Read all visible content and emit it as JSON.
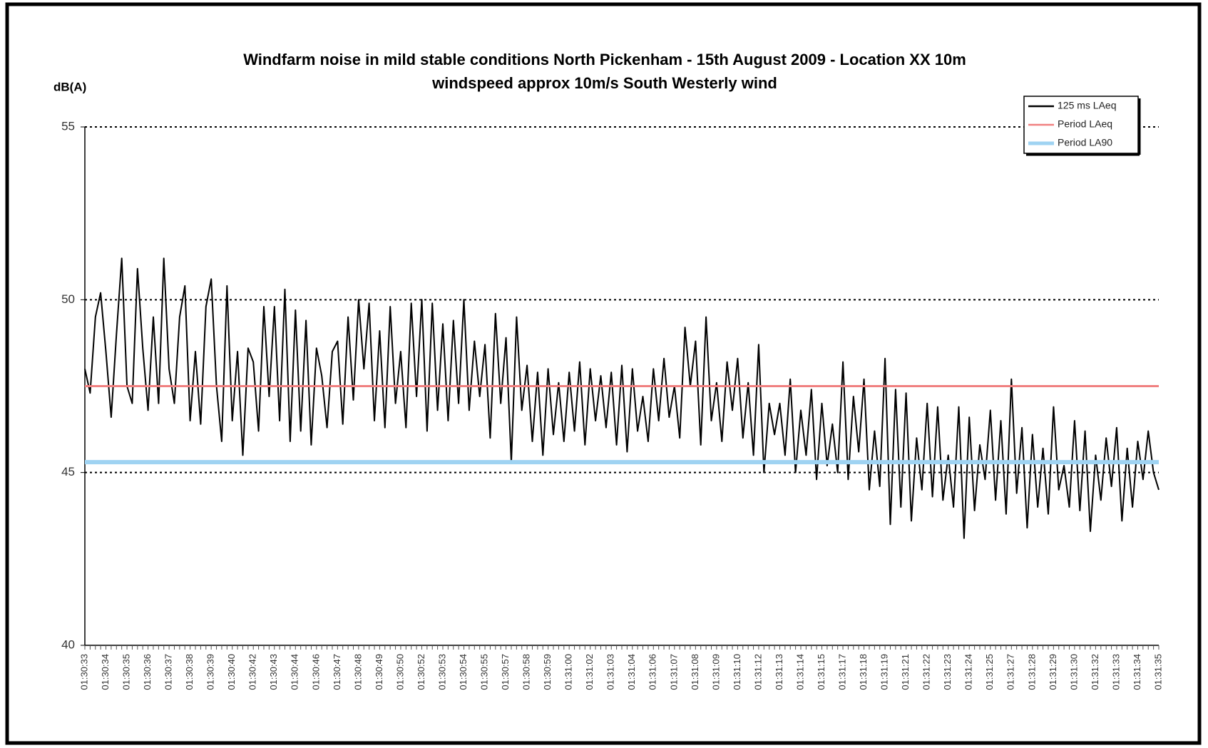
{
  "chart_data": {
    "type": "line",
    "title": [
      "Windfarm noise in mild stable conditions North Pickenham - 15th August 2009 - Location XX 10m",
      "windspeed approx 10m/s South Westerly wind"
    ],
    "y_label": "dB(A)",
    "ylim": [
      40,
      55
    ],
    "yticks": [
      40,
      45,
      50,
      55
    ],
    "grid": true,
    "legend": "top-right",
    "categories": [
      "01:30:33",
      null,
      null,
      null,
      "01:30:34",
      null,
      null,
      null,
      "01:30:35",
      null,
      null,
      null,
      "01:30:36",
      null,
      null,
      null,
      "01:30:37",
      null,
      null,
      null,
      "01:30:38",
      null,
      null,
      null,
      "01:30:39",
      null,
      null,
      null,
      "01:30:40",
      null,
      null,
      null,
      "01:30:42",
      null,
      null,
      null,
      "01:30:43",
      null,
      null,
      null,
      "01:30:44",
      null,
      null,
      null,
      "01:30:46",
      null,
      null,
      null,
      "01:30:47",
      null,
      null,
      null,
      "01:30:48",
      null,
      null,
      null,
      "01:30:49",
      null,
      null,
      null,
      "01:30:50",
      null,
      null,
      null,
      "01:30:52",
      null,
      null,
      null,
      "01:30:53",
      null,
      null,
      null,
      "01:30:54",
      null,
      null,
      null,
      "01:30:55",
      null,
      null,
      null,
      "01:30:57",
      null,
      null,
      null,
      "01:30:58",
      null,
      null,
      null,
      "01:30:59",
      null,
      null,
      null,
      "01:31:00",
      null,
      null,
      null,
      "01:31:02",
      null,
      null,
      null,
      "01:31:03",
      null,
      null,
      null,
      "01:31:04",
      null,
      null,
      null,
      "01:31:06",
      null,
      null,
      null,
      "01:31:07",
      null,
      null,
      null,
      "01:31:08",
      null,
      null,
      null,
      "01:31:09",
      null,
      null,
      null,
      "01:31:10",
      null,
      null,
      null,
      "01:31:12",
      null,
      null,
      null,
      "01:31:13",
      null,
      null,
      null,
      "01:31:14",
      null,
      null,
      null,
      "01:31:15",
      null,
      null,
      null,
      "01:31:17",
      null,
      null,
      null,
      "01:31:18",
      null,
      null,
      null,
      "01:31:19",
      null,
      null,
      null,
      "01:31:21",
      null,
      null,
      null,
      "01:31:22",
      null,
      null,
      null,
      "01:31:23",
      null,
      null,
      null,
      "01:31:24",
      null,
      null,
      null,
      "01:31:25",
      null,
      null,
      null,
      "01:31:27",
      null,
      null,
      null,
      "01:31:28",
      null,
      null,
      null,
      "01:31:29",
      null,
      null,
      null,
      "01:31:30",
      null,
      null,
      null,
      "01:31:32",
      null,
      null,
      null,
      "01:31:33",
      null,
      null,
      null,
      "01:31:34",
      null,
      null,
      null,
      "01:31:35"
    ],
    "series": [
      {
        "name": "125 ms LAeq",
        "color": "#000000",
        "values": [
          48,
          47.3,
          49.5,
          50.2,
          48.5,
          46.6,
          49,
          51.2,
          47.5,
          47,
          50.9,
          48.6,
          46.8,
          49.5,
          47.0,
          51.2,
          48,
          47,
          49.5,
          50.4,
          46.5,
          48.5,
          46.4,
          49.8,
          50.6,
          47.5,
          45.9,
          50.4,
          46.5,
          48.5,
          45.5,
          48.6,
          48.2,
          46.2,
          49.8,
          47.2,
          49.8,
          46.5,
          50.3,
          45.9,
          49.7,
          46.2,
          49.4,
          45.8,
          48.6,
          47.8,
          46.3,
          48.5,
          48.8,
          46.4,
          49.5,
          47.1,
          50.0,
          48.0,
          49.9,
          46.5,
          49.1,
          46.3,
          49.8,
          47.0,
          48.5,
          46.3,
          49.9,
          47.2,
          50.0,
          46.2,
          49.9,
          46.8,
          49.3,
          46.5,
          49.4,
          47.0,
          50.0,
          46.8,
          48.8,
          47.2,
          48.7,
          46.0,
          49.6,
          47.0,
          48.9,
          45.3,
          49.5,
          46.8,
          48.1,
          45.9,
          47.9,
          45.5,
          48.0,
          46.1,
          47.6,
          45.9,
          47.9,
          46.2,
          48.2,
          45.8,
          48.0,
          46.5,
          47.8,
          46.3,
          47.9,
          45.8,
          48.1,
          45.6,
          48.0,
          46.2,
          47.2,
          45.9,
          48.0,
          46.5,
          48.3,
          46.6,
          47.5,
          46.0,
          49.2,
          47.5,
          48.8,
          45.8,
          49.5,
          46.5,
          47.6,
          45.9,
          48.2,
          46.8,
          48.3,
          46.0,
          47.6,
          45.5,
          48.7,
          45.0,
          47.0,
          46.1,
          47.0,
          45.5,
          47.7,
          45.0,
          46.8,
          45.5,
          47.4,
          44.8,
          47.0,
          45.2,
          46.4,
          45.0,
          48.2,
          44.8,
          47.2,
          45.6,
          47.7,
          44.5,
          46.2,
          44.6,
          48.3,
          43.5,
          47.4,
          44.0,
          47.3,
          43.6,
          46.0,
          44.5,
          47.0,
          44.3,
          46.9,
          44.2,
          45.5,
          44.0,
          46.9,
          43.1,
          46.6,
          43.9,
          45.8,
          44.8,
          46.8,
          44.2,
          46.5,
          43.8,
          47.7,
          44.4,
          46.3,
          43.4,
          46.1,
          44.0,
          45.7,
          43.8,
          46.9,
          44.5,
          45.2,
          44.0,
          46.5,
          43.9,
          46.2,
          43.3,
          45.5,
          44.2,
          46.0,
          44.6,
          46.3,
          43.6,
          45.7,
          44.0,
          45.9,
          44.8,
          46.2,
          45.0,
          44.5
        ]
      },
      {
        "name": "Period LAeq",
        "color": "#f08080",
        "value": 47.5
      },
      {
        "name": "Period LA90",
        "color": "#9fd3f2",
        "value": 45.3
      }
    ]
  }
}
